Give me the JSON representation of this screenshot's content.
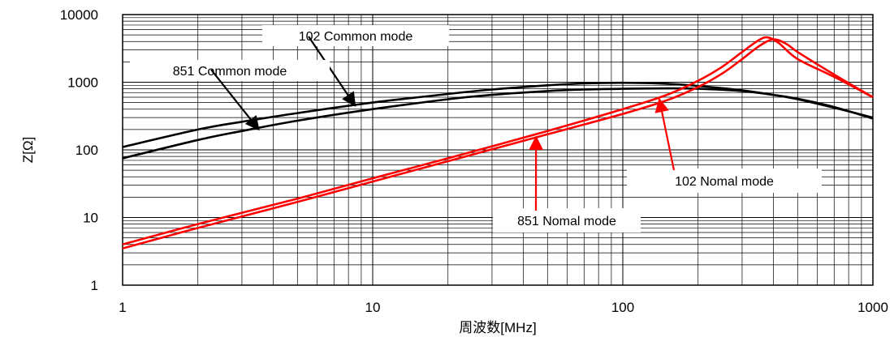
{
  "chart_data": {
    "type": "line",
    "title": "",
    "xlabel": "周波数[MHz]",
    "ylabel": "Z[Ω]",
    "x_scale": "log",
    "y_scale": "log",
    "xlim": [
      1,
      1000
    ],
    "ylim": [
      1,
      10000
    ],
    "grid": true,
    "x_ticks": [
      1,
      10,
      100,
      1000
    ],
    "x_tick_labels": [
      "1",
      "10",
      "100",
      "1000"
    ],
    "y_ticks": [
      1,
      10,
      100,
      1000,
      10000
    ],
    "y_tick_labels": [
      "1",
      "10",
      "100",
      "1000",
      "10000"
    ],
    "series": [
      {
        "name": "851 Common mode",
        "color": "#000000",
        "x": [
          1,
          2,
          3,
          5,
          10,
          20,
          30,
          50,
          70,
          100,
          150,
          200,
          300,
          400,
          500,
          700,
          1000
        ],
        "y": [
          110,
          200,
          260,
          350,
          500,
          670,
          780,
          900,
          960,
          980,
          950,
          880,
          760,
          650,
          560,
          420,
          300
        ]
      },
      {
        "name": "102 Common mode",
        "color": "#000000",
        "x": [
          1,
          2,
          3,
          5,
          10,
          20,
          30,
          50,
          70,
          100,
          150,
          200,
          300,
          400,
          500,
          700,
          1000
        ],
        "y": [
          75,
          140,
          190,
          270,
          400,
          560,
          650,
          740,
          780,
          800,
          810,
          800,
          740,
          650,
          570,
          430,
          290
        ]
      },
      {
        "name": "102 Nomal mode",
        "color": "#ff0000",
        "x": [
          1,
          2,
          5,
          10,
          20,
          50,
          100,
          150,
          200,
          250,
          300,
          350,
          380,
          420,
          500,
          700,
          1000
        ],
        "y": [
          4,
          8,
          19,
          38,
          75,
          190,
          400,
          650,
          1050,
          1700,
          2800,
          4200,
          4600,
          3800,
          2200,
          1200,
          600
        ]
      },
      {
        "name": "851 Nomal mode",
        "color": "#ff0000",
        "x": [
          1,
          2,
          5,
          10,
          20,
          50,
          100,
          150,
          200,
          250,
          300,
          350,
          400,
          450,
          500,
          700,
          1000
        ],
        "y": [
          3.5,
          7,
          17,
          34,
          68,
          170,
          340,
          540,
          850,
          1350,
          2200,
          3400,
          4300,
          3700,
          2800,
          1300,
          600
        ]
      }
    ],
    "annotations": [
      {
        "text": "102 Common mode",
        "series": "102 Common mode",
        "target": [
          8.5,
          450
        ]
      },
      {
        "text": "851 Common mode",
        "series": "851 Common mode",
        "target": [
          3.5,
          200
        ]
      },
      {
        "text": "102 Nomal mode",
        "series": "102 Nomal mode",
        "target": [
          140,
          560
        ]
      },
      {
        "text": "851 Nomal mode",
        "series": "851 Nomal mode",
        "target": [
          45,
          155
        ]
      }
    ]
  }
}
